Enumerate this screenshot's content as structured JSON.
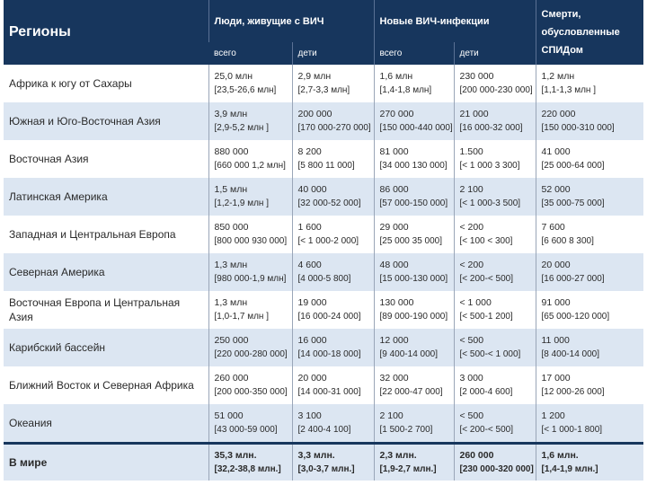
{
  "header": {
    "region": "Регионы",
    "living": "Люди, живущие с ВИЧ",
    "new": "Новые ВИЧ-инфекции",
    "deaths_l1": "Смерти,",
    "deaths_l2": "обусловленные",
    "deaths_l3": "СПИДом",
    "all1": "всего",
    "kids1": "дети",
    "all2": "всего",
    "kids2": "дети"
  },
  "rows": [
    {
      "region": "Африка к югу от Сахары",
      "c1": [
        "25,0 млн",
        "[23,5-26,6 млн]"
      ],
      "c2": [
        "2,9 млн",
        "[2,7-3,3 млн]"
      ],
      "c3": [
        "1,6 млн",
        "[1,4-1,8 млн]"
      ],
      "c4": [
        "230 000",
        "[200 000-230 000]"
      ],
      "c5": [
        "1,2 млн",
        "[1,1-1,3 млн ]"
      ]
    },
    {
      "region": "Южная и Юго-Восточная Азия",
      "c1": [
        "3,9 млн",
        "[2,9-5,2 млн ]"
      ],
      "c2": [
        "200 000",
        "[170 000-270 000]"
      ],
      "c3": [
        "270 000",
        "[150 000-440 000]"
      ],
      "c4": [
        "21 000",
        "[16 000-32 000]"
      ],
      "c5": [
        "220 000",
        "[150 000-310 000]"
      ]
    },
    {
      "region": "Восточная Азия",
      "c1": [
        "880 000",
        "[660 000 1,2 млн]"
      ],
      "c2": [
        "8 200",
        "[5 800 11 000]"
      ],
      "c3": [
        "81 000",
        "[34 000 130 000]"
      ],
      "c4": [
        "1.500",
        "[< 1 000 3 300]"
      ],
      "c5": [
        "41 000",
        "[25 000-64 000]"
      ]
    },
    {
      "region": "Латинская Америка",
      "c1": [
        "1,5 млн",
        "[1,2-1,9 млн ]"
      ],
      "c2": [
        "40 000",
        "[32 000-52 000]"
      ],
      "c3": [
        "86 000",
        "[57 000-150 000]"
      ],
      "c4": [
        "2 100",
        "[< 1 000-3 500]"
      ],
      "c5": [
        "52 000",
        "[35 000-75 000]"
      ]
    },
    {
      "region": "Западная и Центральная Европа",
      "c1": [
        "850 000",
        "[800 000 930 000]"
      ],
      "c2": [
        "1 600",
        "[< 1 000-2 000]"
      ],
      "c3": [
        "29 000",
        "[25 000 35 000]"
      ],
      "c4": [
        "< 200",
        "[< 100 < 300]"
      ],
      "c5": [
        "7 600",
        "[6 600 8 300]"
      ]
    },
    {
      "region": "Северная Америка",
      "c1": [
        "1,3 млн",
        "[980 000-1,9 млн]"
      ],
      "c2": [
        "4 600",
        "[4 000-5 800]"
      ],
      "c3": [
        "48 000",
        "[15 000-130 000]"
      ],
      "c4": [
        "< 200",
        "[< 200-< 500]"
      ],
      "c5": [
        "20 000",
        "[16 000-27 000]"
      ]
    },
    {
      "region": "Восточная Европа и Центральная Азия",
      "c1": [
        "1,3 млн",
        "[1,0-1,7 млн ]"
      ],
      "c2": [
        "19 000",
        "[16 000-24 000]"
      ],
      "c3": [
        "130 000",
        "[89 000-190 000]"
      ],
      "c4": [
        "< 1 000",
        "[< 500-1 200]"
      ],
      "c5": [
        "91 000",
        "[65 000-120 000]"
      ]
    },
    {
      "region": "Карибский бассейн",
      "c1": [
        "250 000",
        "[220 000-280 000]"
      ],
      "c2": [
        "16 000",
        "[14 000-18 000]"
      ],
      "c3": [
        "12 000",
        "[9 400-14 000]"
      ],
      "c4": [
        "< 500",
        "[< 500-< 1 000]"
      ],
      "c5": [
        "11 000",
        "[8 400-14 000]"
      ]
    },
    {
      "region": "Ближний Восток и Северная Африка",
      "c1": [
        "260 000",
        "[200 000-350 000]"
      ],
      "c2": [
        "20 000",
        "[14 000-31 000]"
      ],
      "c3": [
        "32 000",
        "[22 000-47 000]"
      ],
      "c4": [
        "3 000",
        "[2 000-4 600]"
      ],
      "c5": [
        "17 000",
        "[12 000-26 000]"
      ]
    },
    {
      "region": "Океания",
      "c1": [
        "51 000",
        "[43 000-59 000]"
      ],
      "c2": [
        "3 100",
        "[2 400-4 100]"
      ],
      "c3": [
        "2 100",
        "[1 500-2 700]"
      ],
      "c4": [
        "< 500",
        "[< 200-< 500]"
      ],
      "c5": [
        "1 200",
        "[< 1 000-1 800]"
      ]
    }
  ],
  "world": {
    "region": "В мире",
    "c1": [
      "35,3 млн.",
      "[32,2-38,8 млн.]"
    ],
    "c2": [
      "3,3 млн.",
      "[3,0-3,7 млн.]"
    ],
    "c3": [
      "2,3 млн.",
      "[1,9-2,7 млн.]"
    ],
    "c4": [
      "260 000",
      "[230 000-320 000]"
    ],
    "c5": [
      "1,6 млн.",
      "[1,4-1,9 млн.]"
    ]
  }
}
